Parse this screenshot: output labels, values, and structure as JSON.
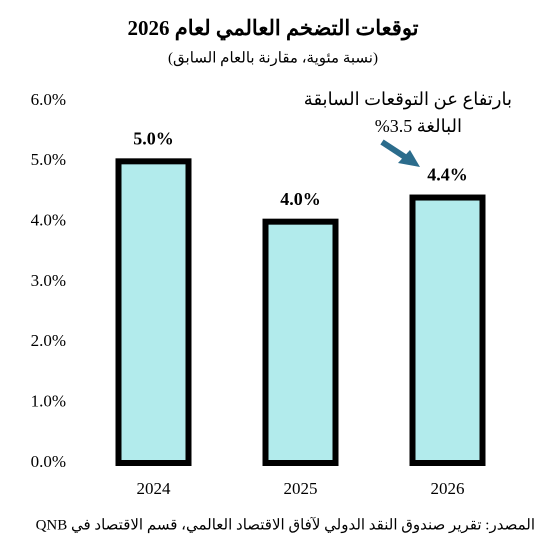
{
  "chart_data": {
    "type": "bar",
    "title": "توقعات التضخم العالمي لعام 2026",
    "subtitle": "(نسبة مئوية، مقارنة بالعام السابق)",
    "categories": [
      "2024",
      "2025",
      "2026"
    ],
    "values": [
      5.0,
      4.0,
      4.4
    ],
    "value_labels": [
      "5.0%",
      "4.0%",
      "4.4%"
    ],
    "color": "#b2ebec",
    "ylim": [
      0,
      6
    ],
    "yticks": [
      {
        "value": 0,
        "label": "0.0%"
      },
      {
        "value": 1,
        "label": "1.0%"
      },
      {
        "value": 2,
        "label": "2.0%"
      },
      {
        "value": 3,
        "label": "3.0%"
      },
      {
        "value": 4,
        "label": "4.0%"
      },
      {
        "value": 5,
        "label": "5.0%"
      },
      {
        "value": 6,
        "label": "6.0%"
      }
    ],
    "grid": false,
    "annotation": [
      "بارتفاع عن التوقعات السابقة",
      "البالغة 3.5%"
    ],
    "source": "المصدر: تقرير صندوق النقد الدولي لآفاق الاقتصاد العالمي، قسم الاقتصاد في QNB"
  }
}
